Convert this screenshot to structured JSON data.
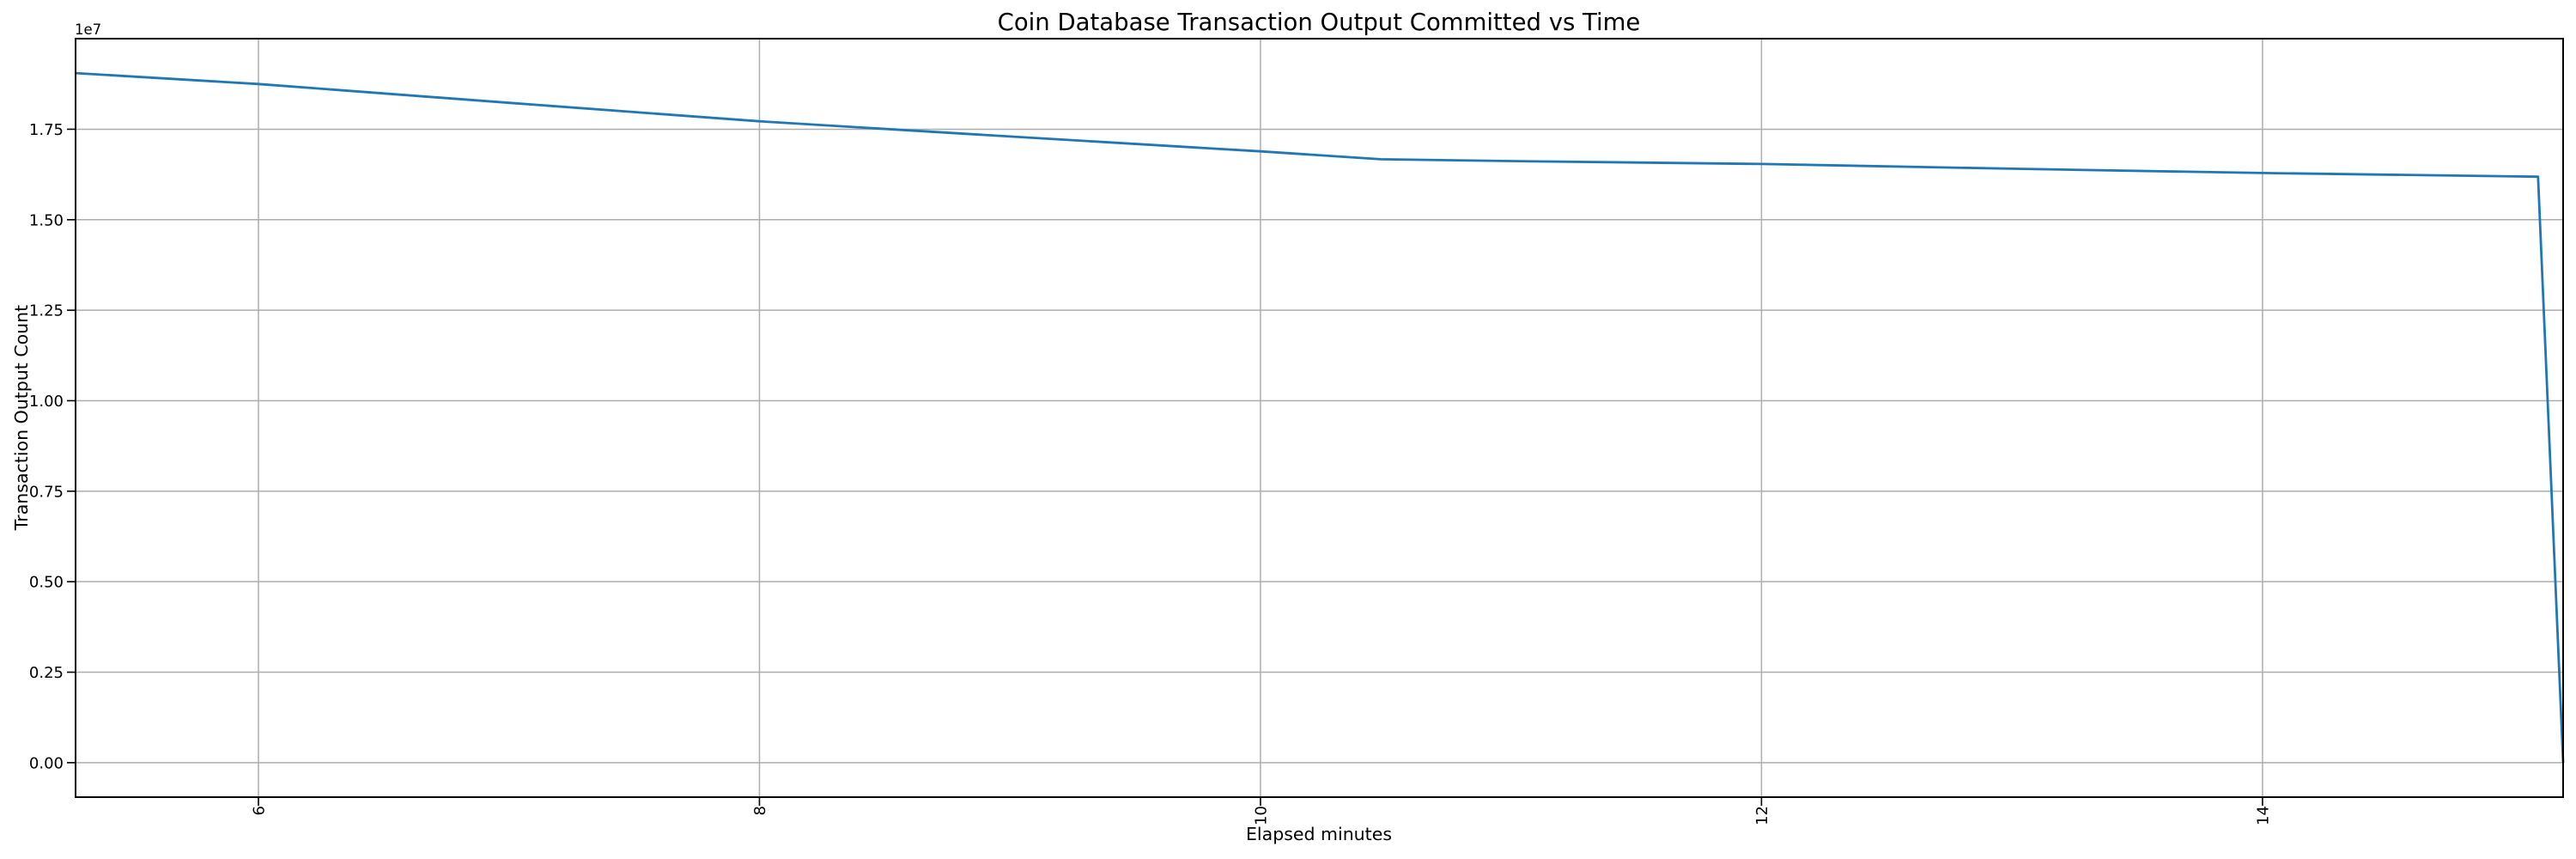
{
  "chart_data": {
    "type": "line",
    "title": "Coin Database Transaction Output Committed vs Time",
    "xlabel": "Elapsed minutes",
    "ylabel": "Transaction Output Count",
    "y_axis_offset_label": "1e7",
    "xlim": [
      5.27,
      15.2
    ],
    "ylim": [
      -952500,
      20002500
    ],
    "xticks": {
      "values": [
        6,
        8,
        10,
        12,
        14
      ],
      "labels": [
        "6",
        "8",
        "10",
        "12",
        "14"
      ],
      "rotation": 90
    },
    "yticks": {
      "values": [
        0,
        2500000,
        5000000,
        7500000,
        10000000,
        12500000,
        15000000,
        17500000
      ],
      "labels": [
        "0.00",
        "0.25",
        "0.50",
        "0.75",
        "1.00",
        "1.25",
        "1.50",
        "1.75"
      ]
    },
    "grid": true,
    "grid_color": "#adadad",
    "axis_color": "#000000",
    "text_color": "#000000",
    "background_color": "#ffffff",
    "legend": "none",
    "series": [
      {
        "name": "transaction-output-count",
        "color": "#1f77b4",
        "line_width": 2.8,
        "x": [
          5.27,
          6.0,
          7.0,
          8.0,
          9.0,
          10.0,
          10.48,
          11.0,
          12.0,
          13.0,
          14.0,
          15.1,
          15.2
        ],
        "y": [
          19050000,
          18750000,
          18230000,
          17720000,
          17300000,
          16890000,
          16670000,
          16620000,
          16540000,
          16410000,
          16290000,
          16190000,
          0
        ]
      }
    ]
  }
}
